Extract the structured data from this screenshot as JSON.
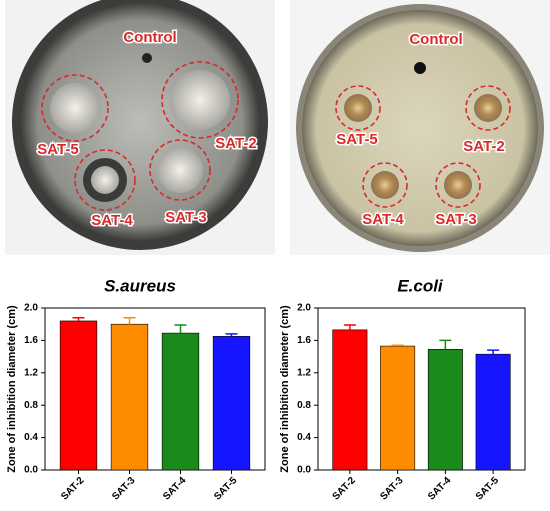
{
  "photos": [
    {
      "labels": [
        "Control",
        "SAT-5",
        "SAT-2",
        "SAT-4",
        "SAT-3"
      ]
    },
    {
      "labels": [
        "Control",
        "SAT-5",
        "SAT-2",
        "SAT-4",
        "SAT-3"
      ]
    }
  ],
  "chart_data": [
    {
      "type": "bar",
      "title": "S.aureus",
      "ylabel": "Zone of inhibition diameter (cm)",
      "categories": [
        "SAT-2",
        "SAT-3",
        "SAT-4",
        "SAT-5"
      ],
      "values": [
        1.84,
        1.8,
        1.69,
        1.65
      ],
      "errors": [
        0.04,
        0.08,
        0.1,
        0.03
      ],
      "colors": [
        "#ff0000",
        "#ff8c00",
        "#1a8a1a",
        "#1515ff"
      ],
      "ylim": [
        0,
        2
      ],
      "yticks": [
        {
          "value": 0,
          "label": "0.0"
        },
        0.4,
        0.8,
        1.2,
        1.6,
        {
          "value": 2,
          "label": "2.0"
        }
      ]
    },
    {
      "type": "bar",
      "title": "E.coli",
      "ylabel": "Zone of inhibition diameter (cm)",
      "categories": [
        "SAT-2",
        "SAT-3",
        "SAT-4",
        "SAT-5"
      ],
      "values": [
        1.73,
        1.53,
        1.49,
        1.43
      ],
      "errors": [
        0.06,
        0.01,
        0.11,
        0.05
      ],
      "colors": [
        "#ff0000",
        "#ff8c00",
        "#1a8a1a",
        "#1515ff"
      ],
      "ylim": [
        0,
        2
      ],
      "yticks": [
        {
          "value": 0,
          "label": "0.0"
        },
        0.4,
        0.8,
        1.2,
        1.6,
        {
          "value": 2,
          "label": "2.0"
        }
      ]
    }
  ]
}
